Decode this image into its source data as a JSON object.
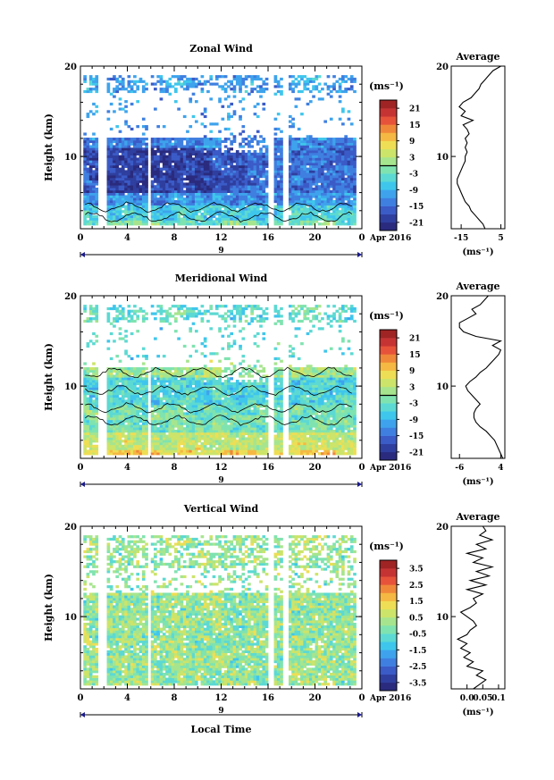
{
  "chart_data": [
    {
      "type": "heatmap",
      "title": "Zonal Wind",
      "xlabel": "",
      "ylabel": "Height (km)",
      "xlim": [
        0,
        24
      ],
      "ylim": [
        2,
        20
      ],
      "x_ticks": [
        "0",
        "4",
        "8",
        "12",
        "16",
        "20",
        "0"
      ],
      "y_ticks": [
        "10",
        "20"
      ],
      "date_label": "9",
      "month_label": "Apr 2016",
      "colorbar": {
        "unit_label": "(ms⁻¹)",
        "ticks": [
          "21",
          "15",
          "9",
          "3",
          "-3",
          "-9",
          "-15",
          "-21"
        ],
        "range": [
          -24,
          24
        ]
      },
      "profile": {
        "title": "Average",
        "xlabel": "(ms⁻¹)",
        "x_ticks": [
          "-15",
          "5"
        ],
        "xlim": [
          -20,
          7
        ],
        "y_ticks": [
          "10",
          "20"
        ],
        "points": [
          [
            -3,
            2.0
          ],
          [
            -4,
            2.5
          ],
          [
            -6,
            3.0
          ],
          [
            -8,
            3.5
          ],
          [
            -10,
            4.0
          ],
          [
            -11,
            4.5
          ],
          [
            -13,
            5.0
          ],
          [
            -14,
            5.5
          ],
          [
            -15,
            6.0
          ],
          [
            -16,
            6.5
          ],
          [
            -17,
            7.0
          ],
          [
            -17,
            7.5
          ],
          [
            -16,
            8.0
          ],
          [
            -15,
            8.5
          ],
          [
            -14,
            9.0
          ],
          [
            -13,
            9.5
          ],
          [
            -13,
            10.0
          ],
          [
            -12,
            10.5
          ],
          [
            -13,
            11.0
          ],
          [
            -12,
            11.5
          ],
          [
            -13,
            12.0
          ],
          [
            -11,
            12.5
          ],
          [
            -12,
            13.0
          ],
          [
            -14,
            13.5
          ],
          [
            -9,
            14.0
          ],
          [
            -15,
            14.5
          ],
          [
            -13,
            15.0
          ],
          [
            -16,
            15.5
          ],
          [
            -14,
            16.0
          ],
          [
            -10,
            16.5
          ],
          [
            -8,
            17.0
          ],
          [
            -6,
            17.5
          ],
          [
            -5,
            18.0
          ],
          [
            -3,
            18.5
          ],
          [
            -1,
            19.0
          ],
          [
            1,
            19.5
          ],
          [
            5,
            20.0
          ]
        ]
      }
    },
    {
      "type": "heatmap",
      "title": "Meridional Wind",
      "xlabel": "",
      "ylabel": "Height (km)",
      "xlim": [
        0,
        24
      ],
      "ylim": [
        2,
        20
      ],
      "x_ticks": [
        "0",
        "4",
        "8",
        "12",
        "16",
        "20",
        "0"
      ],
      "y_ticks": [
        "10",
        "20"
      ],
      "date_label": "9",
      "month_label": "Apr 2016",
      "colorbar": {
        "unit_label": "(ms⁻¹)",
        "ticks": [
          "21",
          "15",
          "9",
          "3",
          "-3",
          "-9",
          "-15",
          "-21"
        ],
        "range": [
          -24,
          24
        ]
      },
      "profile": {
        "title": "Average",
        "xlabel": "(ms⁻¹)",
        "x_ticks": [
          "-6",
          "4"
        ],
        "xlim": [
          -8,
          5
        ],
        "y_ticks": [
          "10",
          "20"
        ],
        "points": [
          [
            4.5,
            2.0
          ],
          [
            4.0,
            2.5
          ],
          [
            3.5,
            3.0
          ],
          [
            3.0,
            3.5
          ],
          [
            2.5,
            4.0
          ],
          [
            1.5,
            4.5
          ],
          [
            0.5,
            5.0
          ],
          [
            -1,
            5.5
          ],
          [
            -2,
            6.0
          ],
          [
            -2.5,
            6.5
          ],
          [
            -2.5,
            7.0
          ],
          [
            -2,
            7.5
          ],
          [
            -1,
            8.0
          ],
          [
            -2,
            8.5
          ],
          [
            -3,
            9.0
          ],
          [
            -4,
            9.5
          ],
          [
            -4.5,
            10.0
          ],
          [
            -3.5,
            10.5
          ],
          [
            -2,
            11.0
          ],
          [
            -1,
            11.5
          ],
          [
            0.5,
            12.0
          ],
          [
            1.5,
            12.5
          ],
          [
            2.5,
            13.0
          ],
          [
            3.5,
            13.5
          ],
          [
            4,
            14.0
          ],
          [
            2,
            14.5
          ],
          [
            4,
            15.0
          ],
          [
            -2,
            15.5
          ],
          [
            -5,
            16.0
          ],
          [
            -6,
            16.5
          ],
          [
            -6,
            17.0
          ],
          [
            -4,
            17.5
          ],
          [
            -2,
            18.0
          ],
          [
            -3,
            18.5
          ],
          [
            -1,
            19.0
          ],
          [
            0,
            19.5
          ],
          [
            1,
            20.0
          ]
        ]
      }
    },
    {
      "type": "heatmap",
      "title": "Vertical Wind",
      "xlabel": "Local Time",
      "ylabel": "Height (km)",
      "xlim": [
        0,
        24
      ],
      "ylim": [
        2,
        20
      ],
      "x_ticks": [
        "0",
        "4",
        "8",
        "12",
        "16",
        "20",
        "0"
      ],
      "y_ticks": [
        "10",
        "20"
      ],
      "date_label": "9",
      "month_label": "Apr 2016",
      "colorbar": {
        "unit_label": "(ms⁻¹)",
        "ticks": [
          "3.5",
          "2.5",
          "1.5",
          "0.5",
          "-0.5",
          "-1.5",
          "-2.5",
          "-3.5"
        ],
        "range": [
          -4,
          4
        ]
      },
      "profile": {
        "title": "Average",
        "xlabel": "(ms⁻¹)",
        "x_ticks": [
          "0.0",
          "0.05",
          "0.1"
        ],
        "xlim": [
          -0.05,
          0.12
        ],
        "y_ticks": [
          "10",
          "20"
        ],
        "points": [
          [
            0.02,
            2.0
          ],
          [
            0.04,
            2.5
          ],
          [
            0.06,
            3.0
          ],
          [
            0.03,
            3.5
          ],
          [
            0.05,
            4.0
          ],
          [
            0.0,
            4.5
          ],
          [
            0.02,
            5.0
          ],
          [
            -0.01,
            5.5
          ],
          [
            0.01,
            6.0
          ],
          [
            -0.02,
            6.5
          ],
          [
            0.0,
            7.0
          ],
          [
            -0.03,
            7.5
          ],
          [
            0.0,
            8.0
          ],
          [
            0.01,
            8.5
          ],
          [
            0.03,
            9.0
          ],
          [
            0.02,
            9.5
          ],
          [
            0.0,
            10.0
          ],
          [
            -0.02,
            10.5
          ],
          [
            0.01,
            11.0
          ],
          [
            0.03,
            11.5
          ],
          [
            0.02,
            12.0
          ],
          [
            0.05,
            12.5
          ],
          [
            0.0,
            13.0
          ],
          [
            0.06,
            13.5
          ],
          [
            0.01,
            14.0
          ],
          [
            0.07,
            14.5
          ],
          [
            0.03,
            15.0
          ],
          [
            0.08,
            15.5
          ],
          [
            0.02,
            16.0
          ],
          [
            0.05,
            16.5
          ],
          [
            0.0,
            17.0
          ],
          [
            0.06,
            17.5
          ],
          [
            0.03,
            18.0
          ],
          [
            0.08,
            18.5
          ],
          [
            0.04,
            19.0
          ],
          [
            0.06,
            19.5
          ],
          [
            0.05,
            20.0
          ]
        ]
      }
    }
  ]
}
